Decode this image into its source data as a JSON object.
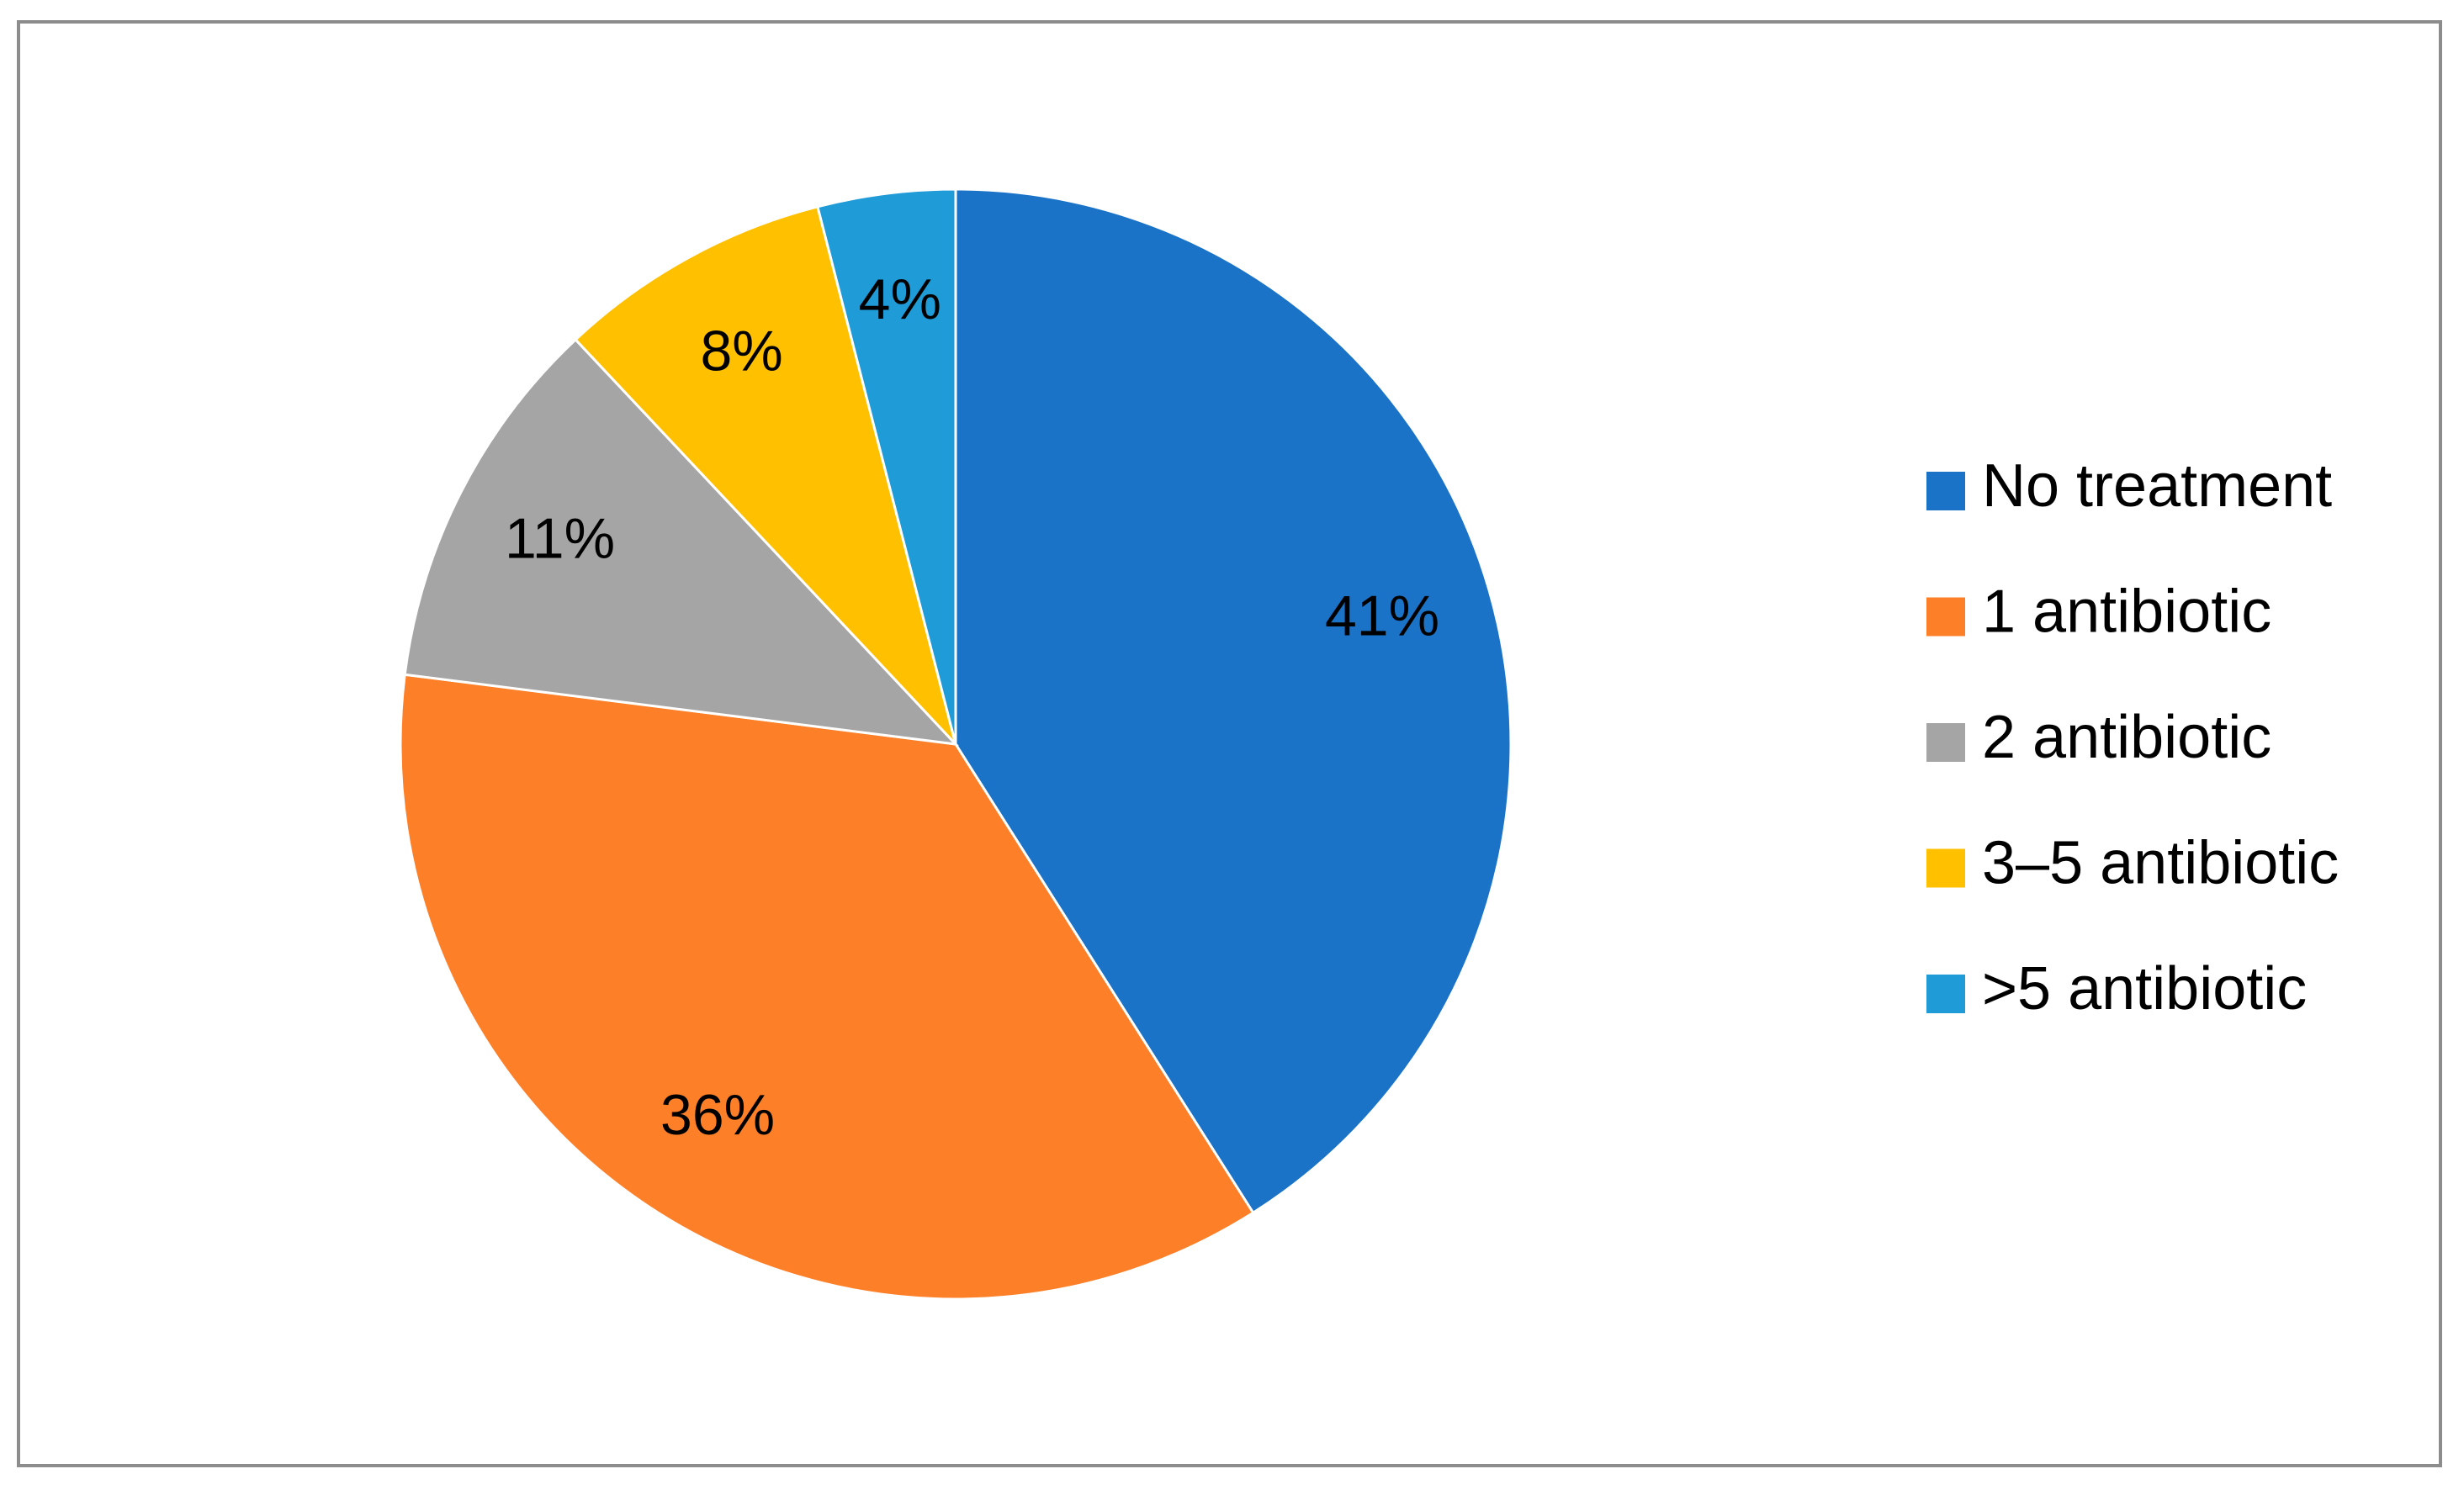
{
  "chart_data": {
    "type": "pie",
    "categories": [
      "No treatment",
      "1 antibiotic",
      "2 antibiotic",
      "3–5 antibiotic",
      ">5 antibiotic"
    ],
    "values": [
      41,
      36,
      11,
      8,
      4
    ],
    "value_labels": [
      "41%",
      "36%",
      "11%",
      "8%",
      "4%"
    ],
    "colors": [
      "#1a73c7",
      "#fd7f28",
      "#a5a5a5",
      "#ffc000",
      "#1f9bd7"
    ],
    "legend": "right"
  }
}
